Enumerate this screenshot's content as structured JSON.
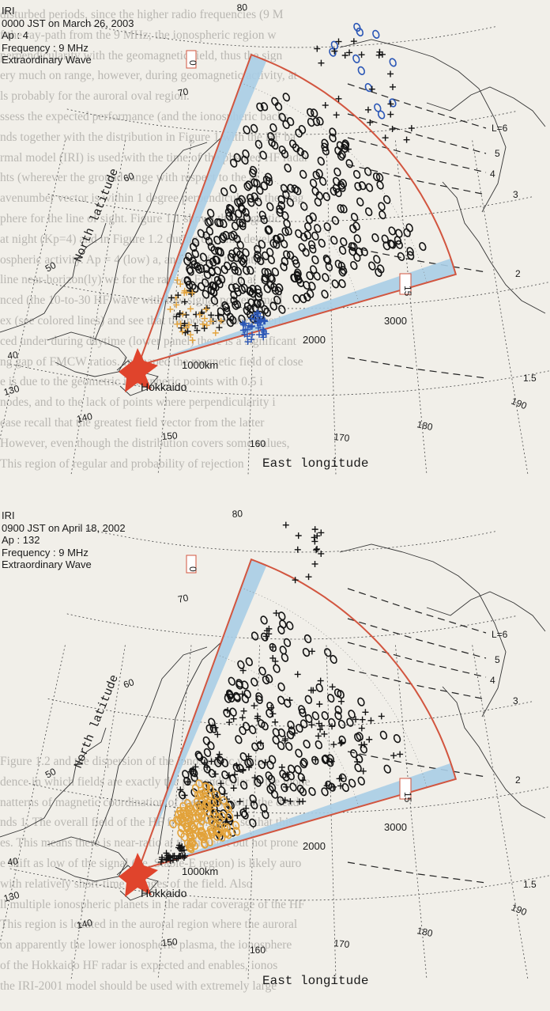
{
  "background_text": {
    "top_block": [
      "disturbed periods, since the higher radio frequencies (9 M",
      "f the ray-path from the 9 MHz; the ionospheric region w",
      "perpendicularity with the geomagnetic field, thus the sign",
      "ery much on range, however, during geomagnetic activity, at",
      "ls probably for the auroral oval region.",
      "ssess the expected performance (and the ionospheric backs",
      "nds together with the distribution in Figure 1 with the HF ba",
      "rmal model (IRI) is used with the time of the planned HF radar",
      "hts (wherever the ground range with respect to the ar",
      "avenumber vector is within 1 degree perpendicular to the mag",
      "phere for the line of sight. Figure 1.1 shows the magnetic",
      "at night (Kp=4) and in Figure 1.2 during daytime develop",
      "ospheric activity. Ap = 4 (low) a, and 132 for the latter",
      "line near-horizon(ly) we for the rays of Figure 1.1 at 10",
      "nced (the 10-to-30 HF wave with low signal power), mod",
      "ex (see colored lines) and see that the possible ionospheric",
      "ced under during daytime (lower panel) there is a significant",
      "ng gap of FMCW ratios. In shaped the magnetic field of close",
      "e is due to the geometric ionospheric points with 0.5 i",
      "nodes, and to the lack of points where perpendicularity i",
      "ease recall that the greatest field vector from the latter",
      "However, even though the distribution covers some values,",
      "This region of regular and probability of rejection"
    ],
    "bottom_block": [
      "Figure 1.2 and the dispersion of the ionospheric vectors",
      "dence in which fields are exactly the perpendicular to the mode",
      "natterns of magnetic coordination of these rays with the dead",
      "nds 1. The overall field of the HF frame the gap, so that this",
      "es. This means there is near-ratio at the highest but not prone",
      "e shift as low of the signal (i.e. Stable-E region) is likely auro",
      "with relatively short-time changes of the field. Also",
      "ll multiple ionospheric planets in the radar coverage of the HF",
      "This region is located in the auroral region where the auroral",
      "on apparently the lower ionospheric plasma, the ionosphere",
      "of the Hokkaido HF radar is expected and enables, ionos",
      "the IRI-2001 model should be used with extremely large"
    ]
  },
  "panels": [
    {
      "id": "top",
      "model": "IRI",
      "time_line": "0000 JST on March 26, 2003",
      "ap_line": "Ap : 4",
      "freq_line": "Frequency : 9 MHz",
      "wave_line": "Extraordinary Wave",
      "site": "Hokkaido",
      "x_axis_title": "East longitude",
      "y_axis_title": "North latitude",
      "lon_labels": [
        "130",
        "140",
        "150",
        "160",
        "170",
        "180",
        "190"
      ],
      "lat_labels": [
        "40",
        "50",
        "60",
        "70",
        "80"
      ],
      "range_labels": [
        "1000km",
        "2000",
        "3000"
      ],
      "beam_labels": [
        "0",
        "15"
      ],
      "l_shell_labels": [
        "L=6",
        "5",
        "4",
        "3",
        "2",
        "1.5"
      ],
      "colors": {
        "fov": "#d2553f",
        "beam_band": "#a8cde6",
        "radar_site": "#e0442c",
        "black_points": "#141414",
        "blue_points": "#2a56b6",
        "orange_points": "#e2a23a"
      }
    },
    {
      "id": "bottom",
      "model": "IRI",
      "time_line": "0900 JST on April 18, 2002",
      "ap_line": "Ap : 132",
      "freq_line": "Frequency : 9 MHz",
      "wave_line": "Extraordinary Wave",
      "site": "Hokkaido",
      "x_axis_title": "East longitude",
      "y_axis_title": "North latitude",
      "lon_labels": [
        "130",
        "140",
        "150",
        "160",
        "170",
        "180",
        "190"
      ],
      "lat_labels": [
        "40",
        "50",
        "60",
        "70",
        "80"
      ],
      "range_labels": [
        "1000km",
        "2000",
        "3000"
      ],
      "beam_labels": [
        "0",
        "15"
      ],
      "l_shell_labels": [
        "L=6",
        "5",
        "4",
        "3",
        "2",
        "1.5"
      ],
      "colors": {
        "fov": "#d2553f",
        "beam_band": "#a8cde6",
        "radar_site": "#e0442c",
        "black_points": "#141414",
        "blue_points": "#2a56b6",
        "orange_points": "#e2a23a"
      }
    }
  ]
}
